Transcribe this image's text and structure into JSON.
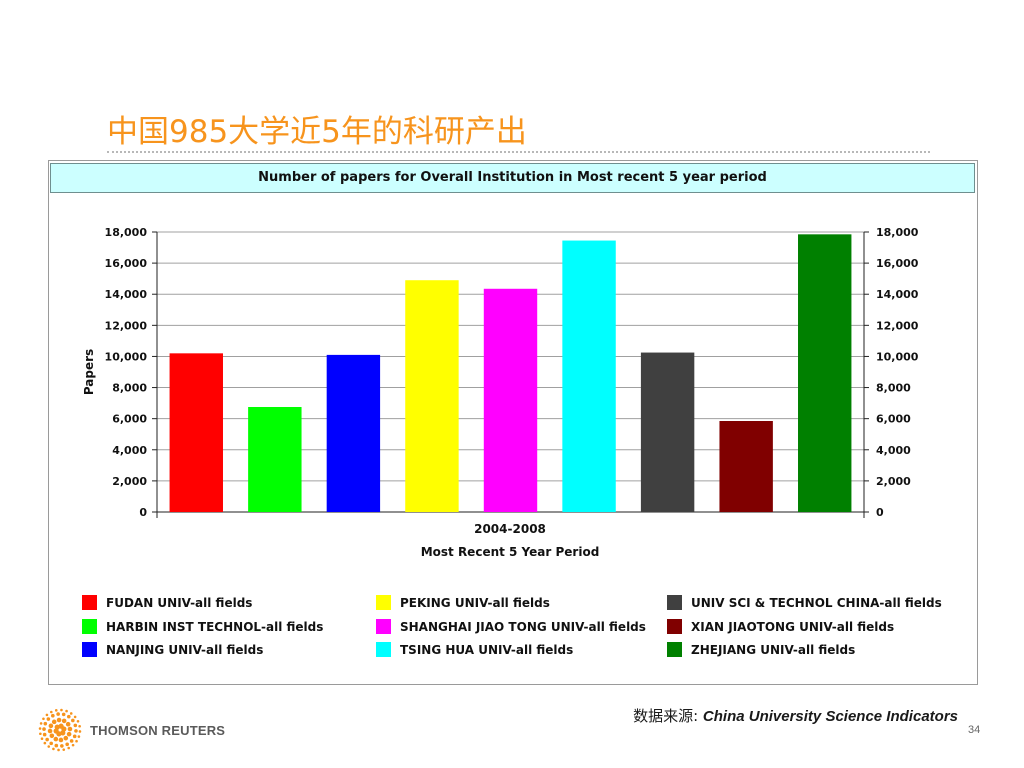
{
  "slide": {
    "title": "中国985大学近5年的科研产出",
    "page_number": "34"
  },
  "footer": {
    "source_prefix": "数据来源: ",
    "source_name": "China University Science Indicators",
    "logo_text": "THOMSON REUTERS"
  },
  "chart_data": {
    "type": "bar",
    "title": "Number of papers for Overall Institution in Most recent 5 year period",
    "category_label": "2004-2008",
    "xlabel": "Most Recent 5 Year Period",
    "ylabel": "Papers",
    "ylim": [
      0,
      18000
    ],
    "yticks": [
      "0",
      "2,000",
      "4,000",
      "6,000",
      "8,000",
      "10,000",
      "12,000",
      "14,000",
      "16,000",
      "18,000"
    ],
    "ytick_values": [
      0,
      2000,
      4000,
      6000,
      8000,
      10000,
      12000,
      14000,
      16000,
      18000
    ],
    "grid": true,
    "legend_placement": "bottom",
    "series": [
      {
        "name": "FUDAN UNIV-all fields",
        "value": 10200,
        "color": "#ff0000"
      },
      {
        "name": "HARBIN INST TECHNOL-all fields",
        "value": 6750,
        "color": "#00ff00"
      },
      {
        "name": "NANJING UNIV-all fields",
        "value": 10100,
        "color": "#0000ff"
      },
      {
        "name": "PEKING UNIV-all fields",
        "value": 14900,
        "color": "#ffff00"
      },
      {
        "name": "SHANGHAI JIAO TONG UNIV-all fields",
        "value": 14350,
        "color": "#ff00ff"
      },
      {
        "name": "TSING HUA UNIV-all fields",
        "value": 17450,
        "color": "#00ffff"
      },
      {
        "name": "UNIV SCI & TECHNOL CHINA-all fields",
        "value": 10250,
        "color": "#404040"
      },
      {
        "name": "XIAN JIAOTONG UNIV-all fields",
        "value": 5850,
        "color": "#800000"
      },
      {
        "name": "ZHEJIANG UNIV-all fields",
        "value": 17850,
        "color": "#008000"
      }
    ]
  }
}
